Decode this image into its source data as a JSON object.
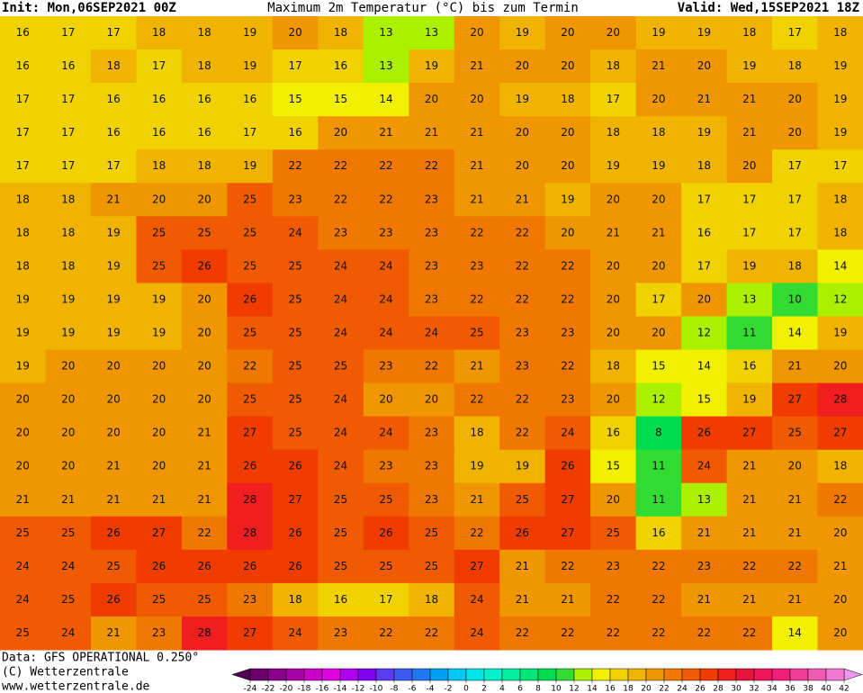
{
  "header": {
    "init": "Init: Mon,06SEP2021 00Z",
    "title": "Maximum 2m Temperatur (°C) bis zum Termin",
    "valid": "Valid: Wed,15SEP2021 18Z"
  },
  "map": {
    "rows": [
      [
        16,
        17,
        17,
        18,
        18,
        19,
        20,
        18,
        13,
        13,
        20,
        19,
        20,
        20,
        19,
        19,
        18,
        17,
        18
      ],
      [
        16,
        16,
        18,
        17,
        18,
        19,
        17,
        16,
        13,
        19,
        21,
        20,
        20,
        18,
        21,
        20,
        19,
        18,
        19
      ],
      [
        17,
        17,
        16,
        16,
        16,
        16,
        15,
        15,
        14,
        20,
        20,
        19,
        18,
        17,
        20,
        21,
        21,
        20,
        19
      ],
      [
        17,
        17,
        16,
        16,
        16,
        17,
        16,
        20,
        21,
        21,
        21,
        20,
        20,
        18,
        18,
        19,
        21,
        20,
        19
      ],
      [
        17,
        17,
        17,
        18,
        18,
        19,
        22,
        22,
        22,
        22,
        21,
        20,
        20,
        19,
        19,
        18,
        20,
        17,
        17
      ],
      [
        18,
        18,
        21,
        20,
        20,
        25,
        23,
        22,
        22,
        23,
        21,
        21,
        19,
        20,
        20,
        17,
        17,
        17,
        18
      ],
      [
        18,
        18,
        19,
        25,
        25,
        25,
        24,
        23,
        23,
        23,
        22,
        22,
        20,
        21,
        21,
        16,
        17,
        17,
        18
      ],
      [
        18,
        18,
        19,
        25,
        26,
        25,
        25,
        24,
        24,
        23,
        23,
        22,
        22,
        20,
        20,
        17,
        19,
        18,
        14
      ],
      [
        19,
        19,
        19,
        19,
        20,
        26,
        25,
        24,
        24,
        23,
        22,
        22,
        22,
        20,
        17,
        20,
        13,
        10,
        12
      ],
      [
        19,
        19,
        19,
        19,
        20,
        25,
        25,
        24,
        24,
        24,
        25,
        23,
        23,
        20,
        20,
        12,
        11,
        14,
        19
      ],
      [
        19,
        20,
        20,
        20,
        20,
        22,
        25,
        25,
        23,
        22,
        21,
        23,
        22,
        18,
        15,
        14,
        16,
        21,
        20
      ],
      [
        20,
        20,
        20,
        20,
        20,
        25,
        25,
        24,
        20,
        20,
        22,
        22,
        23,
        20,
        12,
        15,
        19,
        27,
        28
      ],
      [
        20,
        20,
        20,
        20,
        21,
        27,
        25,
        24,
        24,
        23,
        18,
        22,
        24,
        16,
        8,
        26,
        27,
        25,
        27
      ],
      [
        20,
        20,
        21,
        20,
        21,
        26,
        26,
        24,
        23,
        23,
        19,
        19,
        26,
        15,
        11,
        24,
        21,
        20,
        18
      ],
      [
        21,
        21,
        21,
        21,
        21,
        28,
        27,
        25,
        25,
        23,
        21,
        25,
        27,
        20,
        11,
        13,
        21,
        21,
        22
      ],
      [
        25,
        25,
        26,
        27,
        22,
        28,
        26,
        25,
        26,
        25,
        22,
        26,
        27,
        25,
        16,
        21,
        21,
        21,
        20
      ],
      [
        24,
        24,
        25,
        26,
        26,
        26,
        26,
        25,
        25,
        25,
        27,
        21,
        22,
        23,
        22,
        23,
        22,
        22,
        21
      ],
      [
        24,
        25,
        26,
        25,
        25,
        23,
        18,
        16,
        17,
        18,
        24,
        21,
        21,
        22,
        22,
        21,
        21,
        21,
        20
      ],
      [
        25,
        24,
        21,
        23,
        28,
        27,
        24,
        23,
        22,
        22,
        24,
        22,
        22,
        22,
        22,
        22,
        22,
        14,
        20
      ]
    ]
  },
  "colorbar": {
    "ticks": [
      -24,
      -22,
      -20,
      -18,
      -16,
      -14,
      -12,
      -10,
      -8,
      -6,
      -4,
      -2,
      0,
      2,
      4,
      6,
      8,
      10,
      12,
      14,
      16,
      18,
      20,
      22,
      24,
      26,
      28,
      30,
      32,
      34,
      36,
      38,
      40,
      42
    ],
    "colors": [
      "#6b006b",
      "#8a008a",
      "#a800a8",
      "#c800c8",
      "#e000e0",
      "#b000f0",
      "#8000f0",
      "#5a3cf0",
      "#3c5af0",
      "#1e78f0",
      "#00a0f0",
      "#00c8f0",
      "#00e6e6",
      "#00f0c8",
      "#00f0a0",
      "#00e678",
      "#00dc50",
      "#32dc32",
      "#aaf000",
      "#f0f000",
      "#f0d200",
      "#f0b400",
      "#f09600",
      "#f07800",
      "#f05a00",
      "#f03c00",
      "#f01e1e",
      "#e6143c",
      "#f0145a",
      "#f01e78",
      "#f03c96",
      "#f05ab4",
      "#f078d2"
    ],
    "below_color": "#500050",
    "above_color": "#f096f0"
  },
  "footer": {
    "data_source": "Data: GFS OPERATIONAL 0.250°",
    "copyright": "(C) Wetterzentrale",
    "url": "www.wetterzentrale.de"
  }
}
